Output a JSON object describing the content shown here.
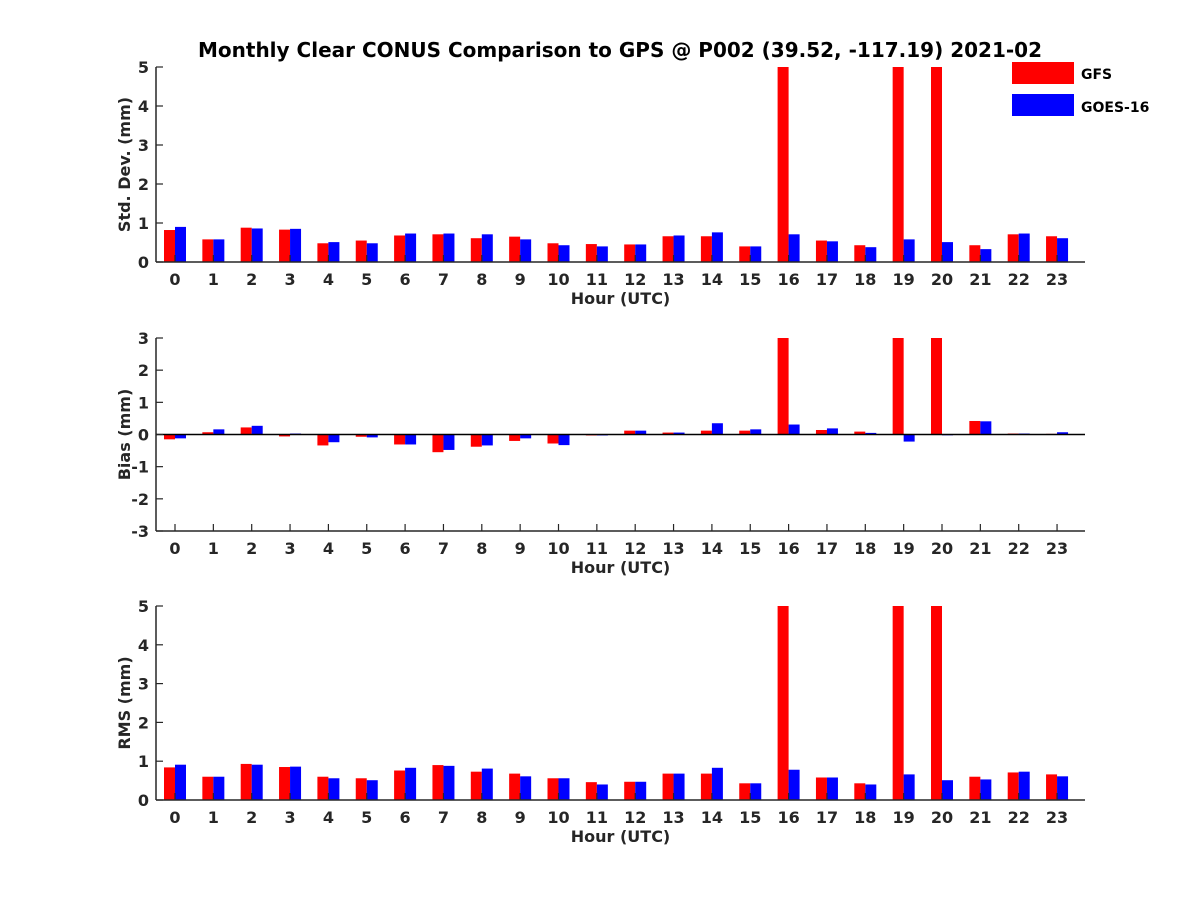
{
  "title": "Monthly Clear CONUS Comparison to GPS @ P002 (39.52, -117.19) 2021-02",
  "legend": {
    "placement": "top-right",
    "items": [
      {
        "label": "GFS",
        "color": "#ff0000"
      },
      {
        "label": "GOES-16",
        "color": "#0000ff"
      }
    ]
  },
  "chart_data": [
    {
      "type": "bar",
      "xlabel": "Hour (UTC)",
      "ylabel": "Std. Dev. (mm)",
      "ylim": [
        0,
        5
      ],
      "yticks": [
        0,
        1,
        2,
        3,
        4,
        5
      ],
      "categories": [
        "0",
        "1",
        "2",
        "3",
        "4",
        "5",
        "6",
        "7",
        "8",
        "9",
        "10",
        "11",
        "12",
        "13",
        "14",
        "15",
        "16",
        "17",
        "18",
        "19",
        "20",
        "21",
        "22",
        "23"
      ],
      "series": [
        {
          "name": "GFS",
          "color": "#ff0000",
          "values": [
            0.82,
            0.58,
            0.88,
            0.83,
            0.48,
            0.55,
            0.68,
            0.71,
            0.61,
            0.65,
            0.48,
            0.46,
            0.45,
            0.66,
            0.66,
            0.4,
            5.0,
            0.55,
            0.43,
            5.0,
            5.0,
            0.43,
            0.71,
            0.66
          ]
        },
        {
          "name": "GOES-16",
          "color": "#0000ff",
          "values": [
            0.9,
            0.58,
            0.86,
            0.85,
            0.51,
            0.48,
            0.73,
            0.73,
            0.71,
            0.58,
            0.43,
            0.4,
            0.45,
            0.68,
            0.76,
            0.4,
            0.71,
            0.53,
            0.38,
            0.58,
            0.51,
            0.33,
            0.73,
            0.61
          ]
        }
      ]
    },
    {
      "type": "bar",
      "xlabel": "Hour (UTC)",
      "ylabel": "Bias (mm)",
      "ylim": [
        -3,
        3
      ],
      "yticks": [
        -3,
        -2,
        -1,
        0,
        1,
        2,
        3
      ],
      "categories": [
        "0",
        "1",
        "2",
        "3",
        "4",
        "5",
        "6",
        "7",
        "8",
        "9",
        "10",
        "11",
        "12",
        "13",
        "14",
        "15",
        "16",
        "17",
        "18",
        "19",
        "20",
        "21",
        "22",
        "23"
      ],
      "series": [
        {
          "name": "GFS",
          "color": "#ff0000",
          "values": [
            -0.15,
            0.07,
            0.22,
            -0.06,
            -0.34,
            -0.07,
            -0.31,
            -0.55,
            -0.38,
            -0.2,
            -0.28,
            -0.03,
            0.12,
            0.06,
            0.12,
            0.12,
            3.0,
            0.14,
            0.09,
            3.0,
            3.0,
            0.42,
            0.03,
            0.02
          ]
        },
        {
          "name": "GOES-16",
          "color": "#0000ff",
          "values": [
            -0.12,
            0.16,
            0.27,
            0.03,
            -0.24,
            -0.09,
            -0.31,
            -0.48,
            -0.34,
            -0.12,
            -0.33,
            -0.03,
            0.12,
            0.06,
            0.35,
            0.16,
            0.31,
            0.19,
            0.05,
            -0.22,
            0.0,
            0.41,
            0.03,
            0.07
          ]
        }
      ]
    },
    {
      "type": "bar",
      "xlabel": "Hour (UTC)",
      "ylabel": "RMS (mm)",
      "ylim": [
        0,
        5
      ],
      "yticks": [
        0,
        1,
        2,
        3,
        4,
        5
      ],
      "categories": [
        "0",
        "1",
        "2",
        "3",
        "4",
        "5",
        "6",
        "7",
        "8",
        "9",
        "10",
        "11",
        "12",
        "13",
        "14",
        "15",
        "16",
        "17",
        "18",
        "19",
        "20",
        "21",
        "22",
        "23"
      ],
      "series": [
        {
          "name": "GFS",
          "color": "#ff0000",
          "values": [
            0.84,
            0.6,
            0.93,
            0.85,
            0.6,
            0.56,
            0.76,
            0.9,
            0.73,
            0.68,
            0.56,
            0.46,
            0.47,
            0.68,
            0.68,
            0.43,
            5.0,
            0.58,
            0.43,
            5.0,
            5.0,
            0.6,
            0.71,
            0.66
          ]
        },
        {
          "name": "GOES-16",
          "color": "#0000ff",
          "values": [
            0.91,
            0.6,
            0.91,
            0.86,
            0.56,
            0.51,
            0.83,
            0.88,
            0.81,
            0.61,
            0.56,
            0.4,
            0.47,
            0.68,
            0.83,
            0.43,
            0.78,
            0.58,
            0.4,
            0.66,
            0.51,
            0.53,
            0.73,
            0.61
          ]
        }
      ]
    }
  ]
}
